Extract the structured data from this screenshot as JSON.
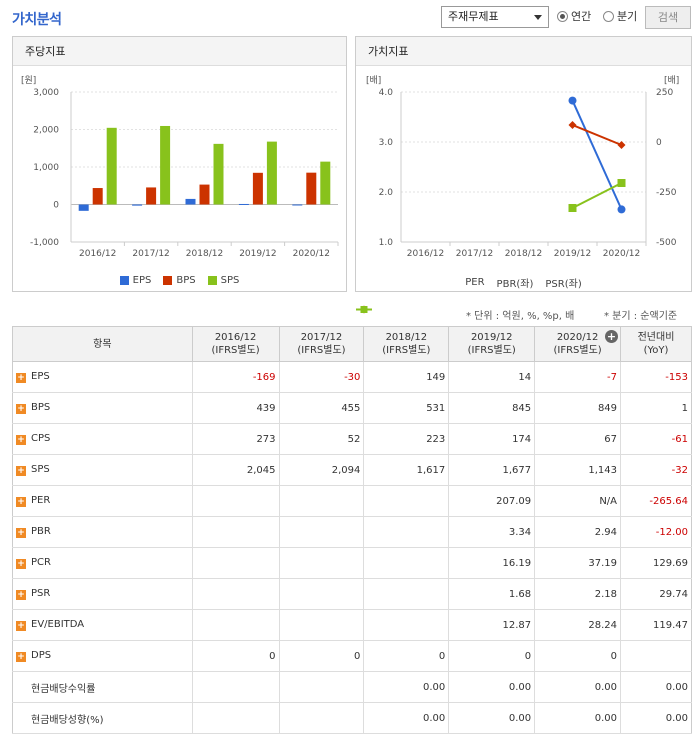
{
  "header": {
    "title": "가치분석",
    "select_value": "주재무제표",
    "radio_annual": "연간",
    "radio_quarter": "분기",
    "search_label": "검색"
  },
  "left_panel": {
    "title": "주당지표"
  },
  "right_panel": {
    "title": "가치지표"
  },
  "colors": {
    "eps": "#2f6bd6",
    "bps": "#cc3300",
    "sps": "#88c21c",
    "per": "#2f6bd6",
    "pbr": "#cc3300",
    "psr": "#88c21c"
  },
  "chart_data": [
    {
      "type": "bar",
      "title": "",
      "ylabel": "[원]",
      "ylim": [
        -1000,
        3000
      ],
      "yticks": [
        "3,000",
        "2,000",
        "1,000",
        "0",
        "-1,000"
      ],
      "categories": [
        "2016/12",
        "2017/12",
        "2018/12",
        "2019/12",
        "2020/12"
      ],
      "series": [
        {
          "name": "EPS",
          "values": [
            -169,
            -30,
            149,
            14,
            -7
          ]
        },
        {
          "name": "BPS",
          "values": [
            439,
            455,
            531,
            845,
            849
          ]
        },
        {
          "name": "SPS",
          "values": [
            2045,
            2094,
            1617,
            1677,
            1143
          ]
        }
      ],
      "legend": "bottom"
    },
    {
      "type": "line",
      "title": "",
      "ylabel_left": "[배]",
      "ylabel_right": "[배]",
      "ylim_left": [
        1.0,
        4.0
      ],
      "ylim_right": [
        -500,
        250
      ],
      "yticks_left": [
        "4.0",
        "3.0",
        "2.0",
        "1.0"
      ],
      "yticks_right": [
        "250",
        "0",
        "-250",
        "-500"
      ],
      "categories": [
        "2016/12",
        "2017/12",
        "2018/12",
        "2019/12",
        "2020/12"
      ],
      "series": [
        {
          "name": "PER",
          "axis": "right",
          "values": [
            null,
            null,
            null,
            207.09,
            -337
          ]
        },
        {
          "name": "PBR(좌)",
          "axis": "left",
          "values": [
            null,
            null,
            null,
            3.34,
            2.94
          ]
        },
        {
          "name": "PSR(좌)",
          "axis": "left",
          "values": [
            null,
            null,
            null,
            1.68,
            2.18
          ]
        }
      ],
      "legend": "bottom"
    }
  ],
  "notes": {
    "unit": "* 단위 : 억원, %, %p, 배",
    "quarter": "* 분기 : 순액기준"
  },
  "table": {
    "headers": [
      "항목",
      "2016/12\n(IFRS별도)",
      "2017/12\n(IFRS별도)",
      "2018/12\n(IFRS별도)",
      "2019/12\n(IFRS별도)",
      "2020/12\n(IFRS별도)",
      "전년대비\n(YoY)"
    ],
    "rows": [
      {
        "label": "EPS",
        "expand": true,
        "cells": [
          "-169",
          "-30",
          "149",
          "14",
          "-7",
          "-153"
        ]
      },
      {
        "label": "BPS",
        "expand": true,
        "cells": [
          "439",
          "455",
          "531",
          "845",
          "849",
          "1"
        ]
      },
      {
        "label": "CPS",
        "expand": true,
        "cells": [
          "273",
          "52",
          "223",
          "174",
          "67",
          "-61"
        ]
      },
      {
        "label": "SPS",
        "expand": true,
        "cells": [
          "2,045",
          "2,094",
          "1,617",
          "1,677",
          "1,143",
          "-32"
        ]
      },
      {
        "label": "PER",
        "expand": true,
        "cells": [
          "",
          "",
          "",
          "207.09",
          "N/A",
          "-265.64"
        ]
      },
      {
        "label": "PBR",
        "expand": true,
        "cells": [
          "",
          "",
          "",
          "3.34",
          "2.94",
          "-12.00"
        ]
      },
      {
        "label": "PCR",
        "expand": true,
        "cells": [
          "",
          "",
          "",
          "16.19",
          "37.19",
          "129.69"
        ]
      },
      {
        "label": "PSR",
        "expand": true,
        "cells": [
          "",
          "",
          "",
          "1.68",
          "2.18",
          "29.74"
        ]
      },
      {
        "label": "EV/EBITDA",
        "expand": true,
        "cells": [
          "",
          "",
          "",
          "12.87",
          "28.24",
          "119.47"
        ]
      },
      {
        "label": "DPS",
        "expand": true,
        "cells": [
          "0",
          "0",
          "0",
          "0",
          "0",
          ""
        ]
      },
      {
        "label": "현금배당수익률",
        "expand": false,
        "cells": [
          "",
          "",
          "0.00",
          "0.00",
          "0.00",
          "0.00"
        ]
      },
      {
        "label": "현금배당성향(%)",
        "expand": false,
        "cells": [
          "",
          "",
          "0.00",
          "0.00",
          "0.00",
          "0.00"
        ]
      }
    ]
  }
}
